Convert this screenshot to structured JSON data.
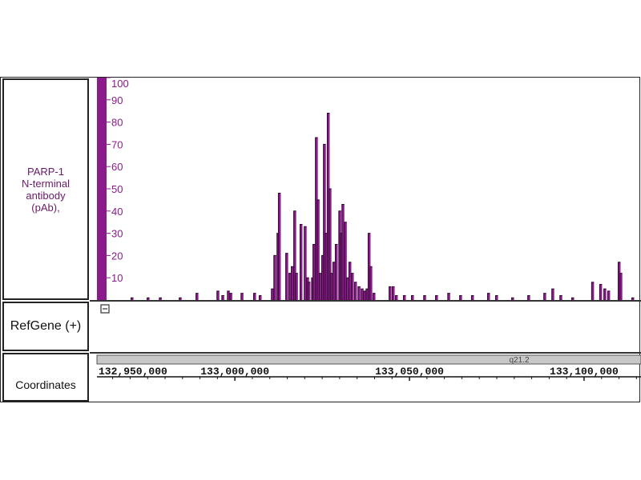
{
  "tracks": {
    "signal_label": "PARP-1 N-terminal antibody (pAb),",
    "signal_label_lines": [
      "PARP-1",
      "N-terminal",
      "antibody",
      "(pAb),"
    ],
    "refgene_label": "RefGene (+)",
    "coordinates_label": "Coordinates",
    "collapse_icon": "minus-box-icon"
  },
  "colors": {
    "signal": "#8b1a8b",
    "outline": "#2a0a2a",
    "scale_bar": "#8b1a8b",
    "label_text": "#6a1a6a"
  },
  "chromosome_band": "q21.2",
  "chart_data": {
    "type": "bar",
    "ylim": [
      0,
      100
    ],
    "yticks": [
      10,
      20,
      30,
      40,
      50,
      60,
      70,
      80,
      90,
      100
    ],
    "xlim": [
      132960500,
      133116300
    ],
    "xticks": [
      {
        "value": 132950000,
        "label": "132,950,000"
      },
      {
        "value": 133000000,
        "label": "133,000,000"
      },
      {
        "value": 133050000,
        "label": "133,050,000"
      },
      {
        "value": 133100000,
        "label": "133,100,000"
      }
    ],
    "x": [
      132970600,
      132975200,
      132978700,
      132984400,
      132989200,
      132995200,
      132996600,
      132998200,
      132998900,
      133002100,
      133005700,
      133007300,
      133010800,
      133011500,
      133012400,
      133012800,
      133014900,
      133015800,
      133016500,
      133017200,
      133017700,
      133019000,
      133020200,
      133020900,
      133021300,
      133022300,
      133022700,
      133023400,
      133023900,
      133024500,
      133025200,
      133025700,
      133026200,
      133026800,
      133027300,
      133027800,
      133028400,
      133029100,
      133030100,
      133030500,
      133031000,
      133031700,
      133032300,
      133033000,
      133033700,
      133034600,
      133035600,
      133036500,
      133037200,
      133037900,
      133038500,
      133039000,
      133039900,
      133044500,
      133045400,
      133046300,
      133048600,
      133050900,
      133054400,
      133057800,
      133061300,
      133064700,
      133068100,
      133072700,
      133075000,
      133079600,
      133084200,
      133088800,
      133091100,
      133093400,
      133096800,
      133102500,
      133104800,
      133106000,
      133107100,
      133110100,
      133110600,
      133114000
    ],
    "values": [
      1,
      1,
      1,
      1,
      3,
      4,
      2,
      4,
      3,
      3,
      3,
      2,
      5,
      20,
      30,
      48,
      21,
      12,
      15,
      40,
      12,
      34,
      33,
      10,
      8,
      10,
      25,
      73,
      45,
      12,
      20,
      70,
      30,
      84,
      50,
      12,
      17,
      25,
      40,
      30,
      43,
      35,
      10,
      17,
      12,
      8,
      6,
      5,
      4,
      5,
      30,
      15,
      3,
      6,
      6,
      2,
      2,
      2,
      2,
      2,
      3,
      2,
      2,
      3,
      2,
      1,
      2,
      3,
      5,
      2,
      1,
      8,
      7,
      5,
      4,
      17,
      12,
      1
    ]
  }
}
